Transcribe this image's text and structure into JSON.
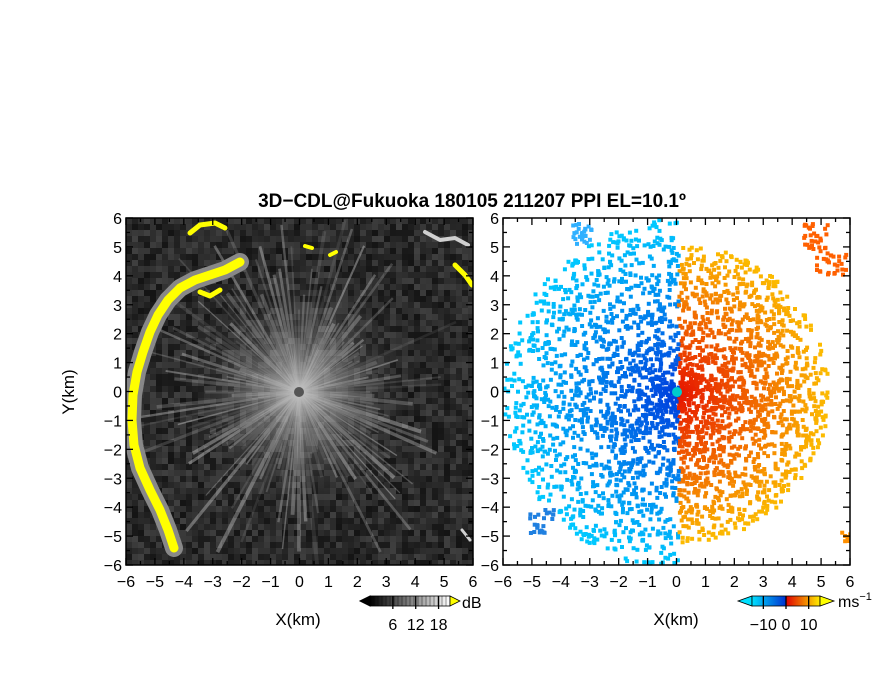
{
  "chart_data": {
    "title": "3D−CDL@Fukuoka 180105 211207 PPI EL=10.1º",
    "panels": [
      {
        "type": "heatmap",
        "quantity": "reflectivity-like intensity",
        "xlabel": "X(km)",
        "ylabel": "Y(km)",
        "xlim": [
          -6,
          6
        ],
        "ylim": [
          -6,
          6
        ],
        "xticks": [
          "−6",
          "−5",
          "−4",
          "−3",
          "−2",
          "−1",
          "0",
          "1",
          "2",
          "3",
          "4",
          "5",
          "6"
        ],
        "yticks": [
          "6",
          "5",
          "4",
          "3",
          "2",
          "1",
          "0",
          "−1",
          "−2",
          "−3",
          "−4",
          "−5",
          "−6"
        ],
        "colorbar": {
          "label": "dB",
          "ticks": [
            "6",
            "12",
            "18"
          ],
          "range": [
            0,
            21
          ]
        },
        "colors": {
          "background": "#2a2a2a",
          "rays": "#e6e6e6",
          "high": "#ffff00"
        }
      },
      {
        "type": "heatmap",
        "quantity": "radial velocity",
        "xlabel": "X(km)",
        "xlim": [
          -6,
          6
        ],
        "ylim": [
          -6,
          6
        ],
        "xticks": [
          "−6",
          "−5",
          "−4",
          "−3",
          "−2",
          "−1",
          "0",
          "1",
          "2",
          "3",
          "4",
          "5",
          "6"
        ],
        "yticks": [
          "6",
          "5",
          "4",
          "3",
          "2",
          "1",
          "0",
          "−1",
          "−2",
          "−3",
          "−4",
          "−5",
          "−6"
        ],
        "colorbar": {
          "label": "ms",
          "label_exponent": "−1",
          "ticks": [
            "−10",
            "0",
            "10"
          ],
          "range": [
            -15,
            15
          ]
        },
        "colors": {
          "negative": [
            "#00ccff",
            "#0044dd"
          ],
          "positive": [
            "#ee2200",
            "#ffcc00"
          ],
          "center": "#00cccc"
        }
      }
    ]
  }
}
